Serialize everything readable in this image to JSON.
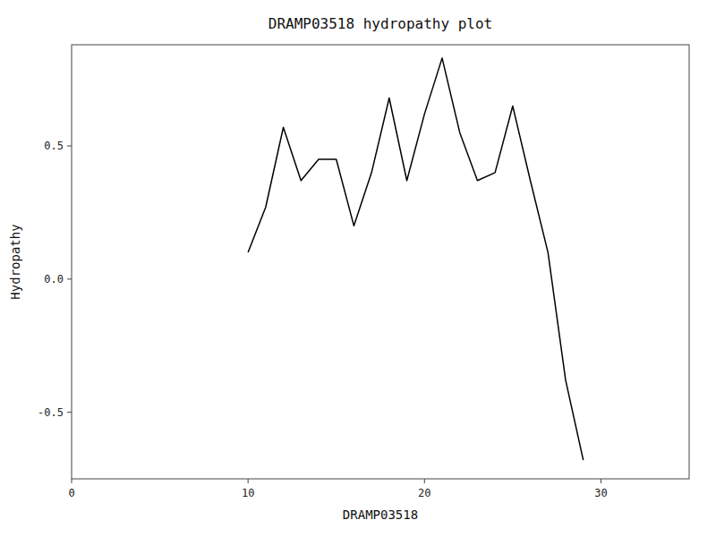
{
  "chart_data": {
    "type": "line",
    "title": "DRAMP03518 hydropathy plot",
    "xlabel": "DRAMP03518",
    "ylabel": "Hydropathy",
    "x": [
      10,
      11,
      12,
      13,
      14,
      15,
      16,
      17,
      18,
      19,
      20,
      21,
      22,
      23,
      24,
      25,
      26,
      27,
      28,
      29
    ],
    "values": [
      0.1,
      0.27,
      0.57,
      0.37,
      0.45,
      0.45,
      0.2,
      0.4,
      0.68,
      0.37,
      0.62,
      0.83,
      0.55,
      0.37,
      0.4,
      0.65,
      0.37,
      0.1,
      -0.38,
      -0.68
    ],
    "color": "#000000",
    "xlim": [
      0,
      35
    ],
    "ylim": [
      -0.75,
      0.88
    ],
    "xticks": [
      0,
      10,
      20,
      30
    ],
    "yticks": [
      -0.5,
      {
        "value": 0,
        "label": "0.0"
      },
      0.5
    ],
    "grid": false
  }
}
